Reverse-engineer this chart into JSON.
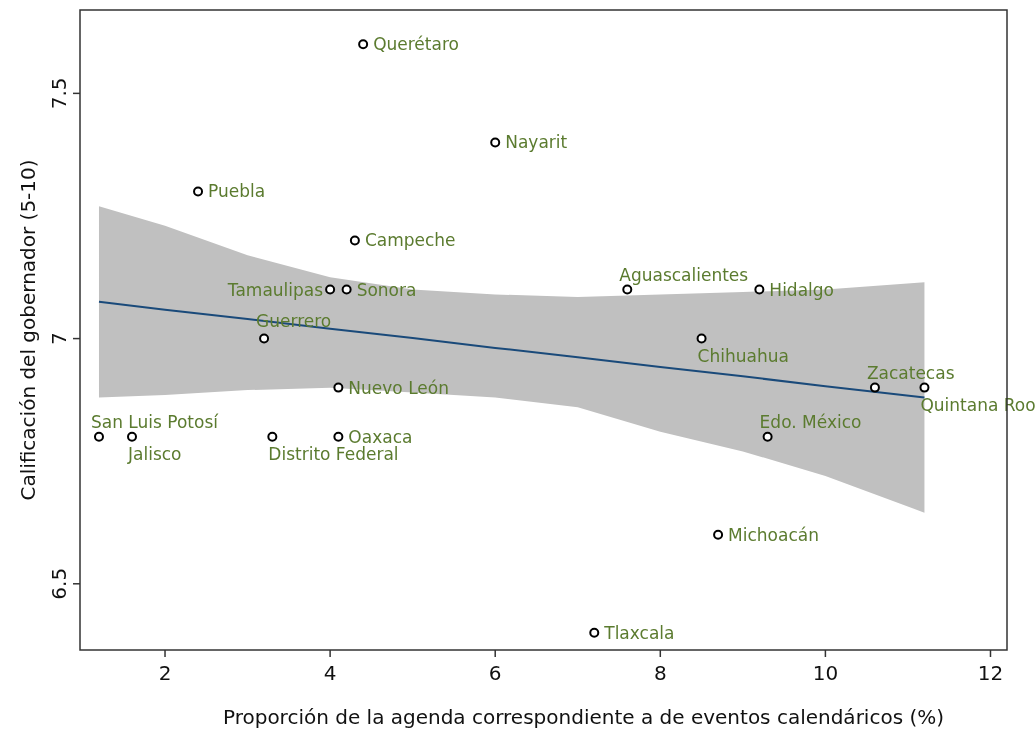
{
  "chart_data": {
    "type": "scatter",
    "xlabel": "Proporción de la agenda correspondiente a de eventos calendáricos (%)",
    "ylabel": "Calificación del gobernador (5-10)",
    "xlim": [
      0.97,
      12.2
    ],
    "ylim": [
      6.365,
      7.67
    ],
    "xticks": [
      2,
      4,
      6,
      8,
      10,
      12
    ],
    "yticks": [
      6.5,
      7,
      7.5
    ],
    "grid": false,
    "series": [
      {
        "marker": "circle",
        "color": "#000000",
        "x": [
          4.4,
          6.0,
          2.4,
          4.3,
          4.0,
          4.2,
          7.6,
          9.2,
          3.2,
          8.5,
          4.1,
          10.6,
          11.2,
          1.2,
          1.6,
          3.3,
          4.1,
          9.3,
          8.7,
          7.2
        ],
        "values": [
          7.6,
          7.4,
          7.3,
          7.2,
          7.1,
          7.1,
          7.1,
          7.1,
          7.0,
          7.0,
          6.9,
          6.9,
          6.9,
          6.8,
          6.8,
          6.8,
          6.8,
          6.8,
          6.6,
          6.4
        ],
        "value_labels": [
          "Querétaro",
          "Nayarit",
          "Puebla",
          "Campeche",
          "Tamaulipas",
          "Sonora",
          "Aguascalientes",
          "Hidalgo",
          "Guerrero",
          "Chihuahua",
          "Nuevo León",
          "Zacatecas",
          "Quintana Roo",
          "San Luis Potosí",
          "Jalisco",
          "Distrito Federal",
          "Oaxaca",
          "Edo. México",
          "Michoacán",
          "Tlaxcala"
        ]
      },
      {
        "type": "line",
        "color": "#1a4a7a",
        "x": [
          1.2,
          2,
          3,
          4,
          5,
          6,
          7,
          8,
          9,
          10,
          11.2
        ],
        "values": [
          7.075,
          7.059,
          7.04,
          7.02,
          7.001,
          6.981,
          6.962,
          6.942,
          6.923,
          6.903,
          6.88
        ],
        "lower": [
          6.88,
          6.885,
          6.895,
          6.9,
          6.89,
          6.88,
          6.86,
          6.81,
          6.77,
          6.72,
          6.645
        ],
        "upper": [
          7.27,
          7.23,
          7.17,
          7.125,
          7.1,
          7.09,
          7.085,
          7.09,
          7.095,
          7.1,
          7.115
        ]
      }
    ]
  }
}
